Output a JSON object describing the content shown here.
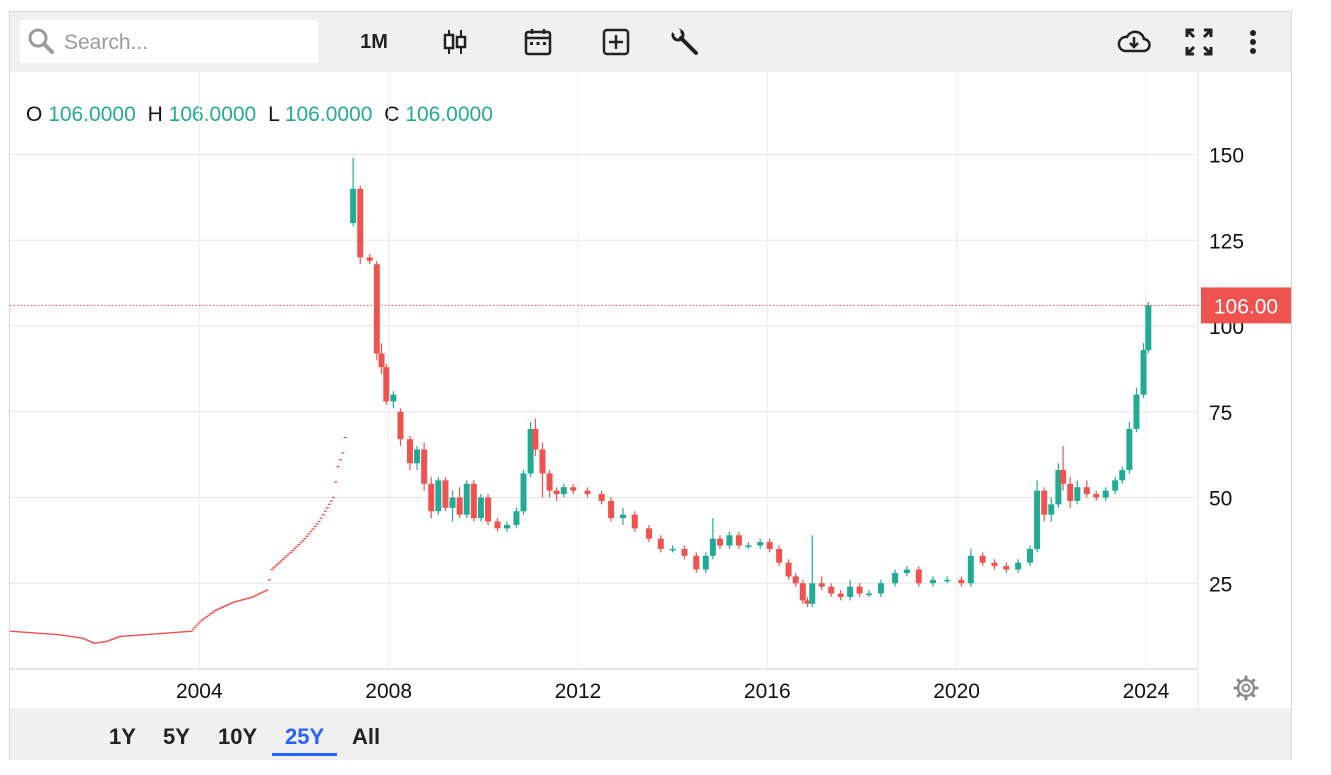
{
  "toolbar": {
    "search_placeholder": "Search...",
    "interval_label": "1M",
    "icons": [
      "candlestick-icon",
      "calendar-icon",
      "add-indicator-icon",
      "wrench-icon",
      "cloud-download-icon",
      "fullscreen-icon",
      "more-vert-icon"
    ]
  },
  "ohlc": {
    "o_label": "O",
    "o_value": "106.0000",
    "h_label": "H",
    "h_value": "106.0000",
    "l_label": "L",
    "l_value": "106.0000",
    "c_label": "C",
    "c_value": "106.0000"
  },
  "ranges": {
    "r1": "1Y",
    "r5": "5Y",
    "r10": "10Y",
    "r25": "25Y",
    "all": "All",
    "active": "25Y"
  },
  "colors": {
    "up": "#22ab94",
    "down": "#ef5350",
    "last_price": "#ef5350",
    "active_range": "#2962ff"
  },
  "chart_data": {
    "type": "candlestick",
    "x_axis": {
      "ticks": [
        "2004",
        "2008",
        "2012",
        "2016",
        "2020",
        "2024"
      ],
      "range": [
        2000.0,
        2025.1
      ]
    },
    "y_axis": {
      "ticks": [
        "25",
        "50",
        "75",
        "100",
        "125",
        "150"
      ],
      "range": [
        0,
        160
      ]
    },
    "last_price": {
      "value": 106.0,
      "label": "106.00"
    },
    "grid": true,
    "series": [
      {
        "style": "dash",
        "points": [
          [
            2000.0,
            11
          ],
          [
            2000.5,
            10.5
          ],
          [
            2001.0,
            10
          ],
          [
            2001.5,
            9
          ],
          [
            2001.75,
            7.5
          ],
          [
            2002.0,
            8
          ],
          [
            2002.3,
            9.5
          ],
          [
            2002.8,
            10
          ],
          [
            2003.3,
            10.5
          ],
          [
            2003.8,
            11
          ],
          [
            2004.0,
            14
          ],
          [
            2004.3,
            17
          ],
          [
            2004.7,
            19.5
          ],
          [
            2005.1,
            21
          ],
          [
            2005.4,
            23
          ],
          [
            2005.5,
            29
          ],
          [
            2005.9,
            34
          ],
          [
            2006.2,
            38
          ],
          [
            2006.5,
            43
          ],
          [
            2006.8,
            50
          ],
          [
            2006.9,
            59
          ],
          [
            2007.0,
            63
          ],
          [
            2007.1,
            72
          ]
        ]
      },
      {
        "style": "candles",
        "candles": [
          [
            2007.25,
            130,
            149,
            129,
            140
          ],
          [
            2007.4,
            140,
            141,
            118,
            120
          ],
          [
            2007.6,
            120,
            121,
            118,
            119
          ],
          [
            2007.75,
            118,
            119,
            90,
            92
          ],
          [
            2007.85,
            92,
            95,
            86,
            88
          ],
          [
            2007.95,
            88,
            89,
            77,
            78
          ],
          [
            2008.1,
            78,
            81,
            76,
            80
          ],
          [
            2008.25,
            75,
            76,
            65,
            67
          ],
          [
            2008.45,
            67,
            68,
            58,
            60
          ],
          [
            2008.6,
            60,
            65,
            58,
            64
          ],
          [
            2008.75,
            64,
            66,
            52,
            54
          ],
          [
            2008.9,
            54,
            56,
            44,
            46
          ],
          [
            2009.05,
            46,
            56,
            45,
            55
          ],
          [
            2009.2,
            55,
            56,
            46,
            47
          ],
          [
            2009.35,
            47,
            52,
            43,
            50
          ],
          [
            2009.5,
            50,
            53,
            44,
            45
          ],
          [
            2009.65,
            45,
            55,
            44,
            54
          ],
          [
            2009.8,
            54,
            55,
            43,
            44
          ],
          [
            2009.95,
            44,
            51,
            43,
            50
          ],
          [
            2010.1,
            50,
            51,
            42,
            43
          ],
          [
            2010.3,
            43,
            44,
            40,
            41
          ],
          [
            2010.5,
            41,
            43,
            40,
            42
          ],
          [
            2010.7,
            42,
            47,
            41,
            46
          ],
          [
            2010.85,
            46,
            58,
            45,
            57
          ],
          [
            2011.0,
            57,
            72,
            56,
            70
          ],
          [
            2011.1,
            70,
            73,
            62,
            64
          ],
          [
            2011.25,
            64,
            66,
            50,
            57
          ],
          [
            2011.4,
            57,
            58,
            50,
            52
          ],
          [
            2011.55,
            52,
            53,
            49,
            51
          ],
          [
            2011.7,
            51,
            54,
            50,
            53
          ],
          [
            2011.9,
            53,
            54,
            51,
            52
          ],
          [
            2012.2,
            52,
            53,
            50,
            51
          ],
          [
            2012.5,
            51,
            52,
            48,
            49
          ],
          [
            2012.7,
            49,
            50,
            43,
            44
          ],
          [
            2012.95,
            44,
            47,
            42,
            45
          ],
          [
            2013.2,
            45,
            46,
            40,
            41
          ],
          [
            2013.5,
            41,
            42,
            37,
            38
          ],
          [
            2013.75,
            38,
            39,
            34,
            35
          ],
          [
            2014.0,
            35,
            36,
            34,
            35
          ],
          [
            2014.25,
            35,
            36,
            32,
            33
          ],
          [
            2014.5,
            33,
            34,
            28,
            29
          ],
          [
            2014.7,
            29,
            34,
            28,
            33
          ],
          [
            2014.85,
            33,
            44,
            32,
            38
          ],
          [
            2015.0,
            38,
            39,
            35,
            36
          ],
          [
            2015.2,
            36,
            40,
            35,
            39
          ],
          [
            2015.4,
            39,
            40,
            35,
            36
          ],
          [
            2015.6,
            36,
            37,
            35,
            36
          ],
          [
            2015.85,
            36,
            38,
            35,
            37
          ],
          [
            2016.05,
            37,
            38,
            34,
            35
          ],
          [
            2016.25,
            35,
            36,
            30,
            31
          ],
          [
            2016.45,
            31,
            32,
            26,
            27
          ],
          [
            2016.6,
            27,
            28,
            24,
            25
          ],
          [
            2016.75,
            25,
            26,
            19,
            20
          ],
          [
            2016.85,
            20,
            21,
            18,
            19
          ],
          [
            2016.95,
            19,
            39,
            18,
            25
          ],
          [
            2017.15,
            25,
            27,
            23,
            24
          ],
          [
            2017.35,
            24,
            25,
            21,
            22
          ],
          [
            2017.55,
            22,
            23,
            20,
            21
          ],
          [
            2017.75,
            21,
            26,
            20,
            24
          ],
          [
            2017.95,
            24,
            25,
            21,
            22
          ],
          [
            2018.15,
            22,
            23,
            21,
            22
          ],
          [
            2018.4,
            22,
            26,
            21,
            25
          ],
          [
            2018.7,
            25,
            29,
            24,
            28
          ],
          [
            2018.95,
            28,
            30,
            27,
            29
          ],
          [
            2019.2,
            29,
            30,
            24,
            25
          ],
          [
            2019.5,
            25,
            27,
            24,
            26
          ],
          [
            2019.8,
            26,
            27,
            25,
            26
          ],
          [
            2020.1,
            26,
            27,
            24,
            25
          ],
          [
            2020.3,
            25,
            35,
            24,
            33
          ],
          [
            2020.55,
            33,
            34,
            30,
            31
          ],
          [
            2020.8,
            31,
            32,
            29,
            30
          ],
          [
            2021.05,
            30,
            31,
            28,
            29
          ],
          [
            2021.3,
            29,
            32,
            28,
            31
          ],
          [
            2021.55,
            31,
            36,
            30,
            35
          ],
          [
            2021.7,
            35,
            55,
            34,
            52
          ],
          [
            2021.85,
            52,
            53,
            43,
            45
          ],
          [
            2022.0,
            45,
            50,
            43,
            48
          ],
          [
            2022.15,
            48,
            60,
            47,
            58
          ],
          [
            2022.25,
            58,
            65,
            52,
            54
          ],
          [
            2022.4,
            54,
            56,
            47,
            49
          ],
          [
            2022.55,
            49,
            55,
            48,
            53
          ],
          [
            2022.75,
            53,
            55,
            50,
            51
          ],
          [
            2022.95,
            51,
            52,
            49,
            50
          ],
          [
            2023.15,
            50,
            53,
            49,
            52
          ],
          [
            2023.35,
            52,
            56,
            51,
            55
          ],
          [
            2023.5,
            55,
            59,
            54,
            58
          ],
          [
            2023.65,
            58,
            72,
            57,
            70
          ],
          [
            2023.8,
            70,
            82,
            69,
            80
          ],
          [
            2023.95,
            80,
            95,
            79,
            93
          ],
          [
            2024.05,
            93,
            107,
            92,
            106
          ]
        ]
      }
    ]
  }
}
